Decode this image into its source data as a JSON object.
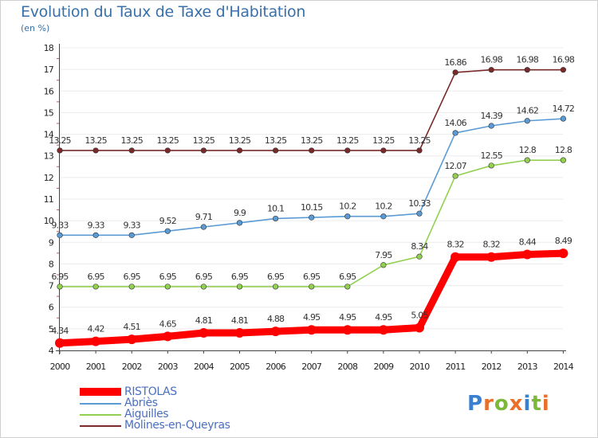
{
  "title": "Evolution du Taux de Taxe d'Habitation",
  "unit": "(en %)",
  "logo": {
    "text": "Proxiti",
    "letter_colors": [
      "#3a7fd0",
      "#e8702a",
      "#7cb83a",
      "#e8702a",
      "#3a7fd0",
      "#7cb83a",
      "#e8702a"
    ]
  },
  "chart_data": {
    "type": "line",
    "title": "Evolution du Taux de Taxe d'Habitation",
    "ylabel": "(en %)",
    "xlabel": "",
    "x": [
      "2000",
      "2001",
      "2002",
      "2003",
      "2004",
      "2005",
      "2006",
      "2007",
      "2008",
      "2009",
      "2010",
      "2011",
      "2012",
      "2013",
      "2014"
    ],
    "ylim": [
      4,
      18
    ],
    "yticks": [
      "4",
      "5",
      "6",
      "7",
      "8",
      "9",
      "10",
      "11",
      "12",
      "13",
      "14",
      "15",
      "16",
      "17",
      "18"
    ],
    "grid": "horizontal",
    "legend_position": "bottom-left",
    "series": [
      {
        "name": "Molines-en-Queyras",
        "color": "#7a2a2a",
        "values": [
          13.25,
          13.25,
          13.25,
          13.25,
          13.25,
          13.25,
          13.25,
          13.25,
          13.25,
          13.25,
          13.25,
          16.86,
          16.98,
          16.98,
          16.98
        ],
        "labels": [
          "13.25",
          "13.25",
          "13.25",
          "13.25",
          "13.25",
          "13.25",
          "13.25",
          "13.25",
          "13.25",
          "13.25",
          "13.25",
          "16.86",
          "16.98",
          "16.98",
          "16.98"
        ]
      },
      {
        "name": "Abriès",
        "color": "#5b9bd5",
        "values": [
          9.33,
          9.33,
          9.33,
          9.52,
          9.71,
          9.9,
          10.1,
          10.15,
          10.2,
          10.2,
          10.33,
          14.06,
          14.39,
          14.62,
          14.72
        ],
        "labels": [
          "9.33",
          "9.33",
          "9.33",
          "9.52",
          "9.71",
          "9.9",
          "10.1",
          "10.15",
          "10.2",
          "10.2",
          "10.33",
          "14.06",
          "14.39",
          "14.62",
          "14.72"
        ]
      },
      {
        "name": "Aiguilles",
        "color": "#92d050",
        "values": [
          6.95,
          6.95,
          6.95,
          6.95,
          6.95,
          6.95,
          6.95,
          6.95,
          6.95,
          7.95,
          8.34,
          12.07,
          12.55,
          12.8,
          12.8
        ],
        "labels": [
          "6.95",
          "6.95",
          "6.95",
          "6.95",
          "6.95",
          "6.95",
          "6.95",
          "6.95",
          "6.95",
          "7.95",
          "8.34",
          "12.07",
          "12.55",
          "12.8",
          "12.8"
        ]
      },
      {
        "name": "RISTOLAS",
        "color": "#ff0000",
        "values": [
          4.34,
          4.42,
          4.51,
          4.65,
          4.81,
          4.81,
          4.88,
          4.95,
          4.95,
          4.95,
          5.05,
          8.32,
          8.32,
          8.44,
          8.49
        ],
        "labels": [
          "4.34",
          "4.42",
          "4.51",
          "4.65",
          "4.81",
          "4.81",
          "4.88",
          "4.95",
          "4.95",
          "4.95",
          "5.05",
          "8.32",
          "8.32",
          "8.44",
          "8.49"
        ]
      }
    ],
    "legend": [
      "RISTOLAS",
      "Abriès",
      "Aiguilles",
      "Molines-en-Queyras"
    ]
  }
}
